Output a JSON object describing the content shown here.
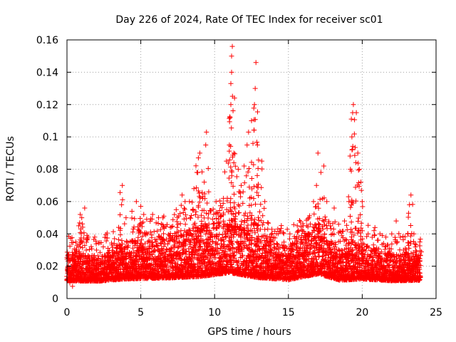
{
  "chart_data": {
    "type": "scatter",
    "title": "Day 226 of 2024, Rate Of TEC Index for receiver sc01",
    "xlabel": "GPS time / hours",
    "ylabel": "ROTI / TECUs",
    "xlim": [
      0,
      25
    ],
    "ylim": [
      0,
      0.16
    ],
    "x_ticks": [
      0,
      5,
      10,
      15,
      20,
      25
    ],
    "y_ticks": [
      0,
      0.02,
      0.04,
      0.06,
      0.08,
      0.1,
      0.12,
      0.14,
      0.16
    ],
    "x_tick_labels": [
      "0",
      "5",
      "10",
      "15",
      "20",
      "25"
    ],
    "y_tick_labels": [
      "0",
      "0.02",
      "0.04",
      "0.06",
      "0.08",
      "0.1",
      "0.12",
      "0.14",
      "0.16"
    ],
    "grid": true,
    "marker": "+",
    "color": "#ff0000",
    "series": [
      {
        "name": "ROTI",
        "points": [
          [
            0.1,
            0.025
          ],
          [
            0.3,
            0.02
          ],
          [
            0.6,
            0.03
          ],
          [
            0.8,
            0.045
          ],
          [
            0.9,
            0.052
          ],
          [
            1.0,
            0.05
          ],
          [
            1.2,
            0.056
          ],
          [
            1.4,
            0.037
          ],
          [
            2.0,
            0.03
          ],
          [
            2.6,
            0.026
          ],
          [
            3.2,
            0.034
          ],
          [
            3.5,
            0.044
          ],
          [
            3.7,
            0.058
          ],
          [
            3.75,
            0.07
          ],
          [
            4.0,
            0.05
          ],
          [
            4.4,
            0.054
          ],
          [
            4.7,
            0.06
          ],
          [
            5.0,
            0.057
          ],
          [
            5.2,
            0.052
          ],
          [
            5.8,
            0.052
          ],
          [
            6.2,
            0.05
          ],
          [
            6.5,
            0.05
          ],
          [
            7.0,
            0.044
          ],
          [
            7.4,
            0.055
          ],
          [
            7.8,
            0.064
          ],
          [
            8.0,
            0.06
          ],
          [
            8.3,
            0.06
          ],
          [
            8.6,
            0.068
          ],
          [
            8.8,
            0.078
          ],
          [
            8.9,
            0.087
          ],
          [
            9.0,
            0.09
          ],
          [
            9.3,
            0.072
          ],
          [
            9.4,
            0.095
          ],
          [
            9.45,
            0.103
          ],
          [
            9.6,
            0.066
          ],
          [
            10.1,
            0.06
          ],
          [
            10.6,
            0.062
          ],
          [
            10.8,
            0.085
          ],
          [
            11.0,
            0.095
          ],
          [
            11.05,
            0.112
          ],
          [
            11.1,
            0.12
          ],
          [
            11.1,
            0.133
          ],
          [
            11.15,
            0.14
          ],
          [
            11.15,
            0.15
          ],
          [
            11.2,
            0.156
          ],
          [
            11.3,
            0.09
          ],
          [
            11.6,
            0.08
          ],
          [
            11.8,
            0.07
          ],
          [
            12.0,
            0.082
          ],
          [
            12.2,
            0.095
          ],
          [
            12.3,
            0.103
          ],
          [
            12.5,
            0.11
          ],
          [
            12.6,
            0.096
          ],
          [
            12.7,
            0.12
          ],
          [
            12.75,
            0.13
          ],
          [
            12.8,
            0.146
          ],
          [
            12.9,
            0.095
          ],
          [
            13.2,
            0.085
          ],
          [
            13.4,
            0.06
          ],
          [
            13.6,
            0.047
          ],
          [
            14.2,
            0.04
          ],
          [
            15.1,
            0.04
          ],
          [
            15.6,
            0.045
          ],
          [
            16.0,
            0.045
          ],
          [
            16.4,
            0.05
          ],
          [
            16.7,
            0.06
          ],
          [
            16.9,
            0.07
          ],
          [
            17.0,
            0.09
          ],
          [
            17.2,
            0.078
          ],
          [
            17.4,
            0.082
          ],
          [
            17.6,
            0.06
          ],
          [
            18.1,
            0.056
          ],
          [
            18.4,
            0.046
          ],
          [
            18.8,
            0.048
          ],
          [
            19.1,
            0.06
          ],
          [
            19.2,
            0.08
          ],
          [
            19.3,
            0.1
          ],
          [
            19.35,
            0.115
          ],
          [
            19.4,
            0.12
          ],
          [
            19.6,
            0.115
          ],
          [
            19.7,
            0.09
          ],
          [
            19.8,
            0.08
          ],
          [
            20.0,
            0.06
          ],
          [
            20.4,
            0.04
          ],
          [
            20.8,
            0.042
          ],
          [
            21.2,
            0.04
          ],
          [
            21.6,
            0.038
          ],
          [
            22.0,
            0.04
          ],
          [
            22.3,
            0.048
          ],
          [
            22.8,
            0.03
          ],
          [
            23.1,
            0.04
          ],
          [
            23.2,
            0.058
          ],
          [
            23.3,
            0.064
          ],
          [
            23.5,
            0.04
          ],
          [
            23.9,
            0.035
          ]
        ],
        "baseline": {
          "x_start": 0,
          "x_end": 23.95,
          "step": 0.02,
          "band": [
            [
              0,
              0.008,
              0.028
            ],
            [
              2,
              0.008,
              0.026
            ],
            [
              4,
              0.008,
              0.035
            ],
            [
              7,
              0.008,
              0.04
            ],
            [
              9,
              0.008,
              0.045
            ],
            [
              11,
              0.01,
              0.05
            ],
            [
              13,
              0.008,
              0.04
            ],
            [
              15,
              0.008,
              0.032
            ],
            [
              17,
              0.01,
              0.045
            ],
            [
              18.5,
              0.008,
              0.03
            ],
            [
              20,
              0.008,
              0.035
            ],
            [
              22,
              0.008,
              0.028
            ],
            [
              24,
              0.008,
              0.03
            ]
          ]
        }
      }
    ]
  }
}
